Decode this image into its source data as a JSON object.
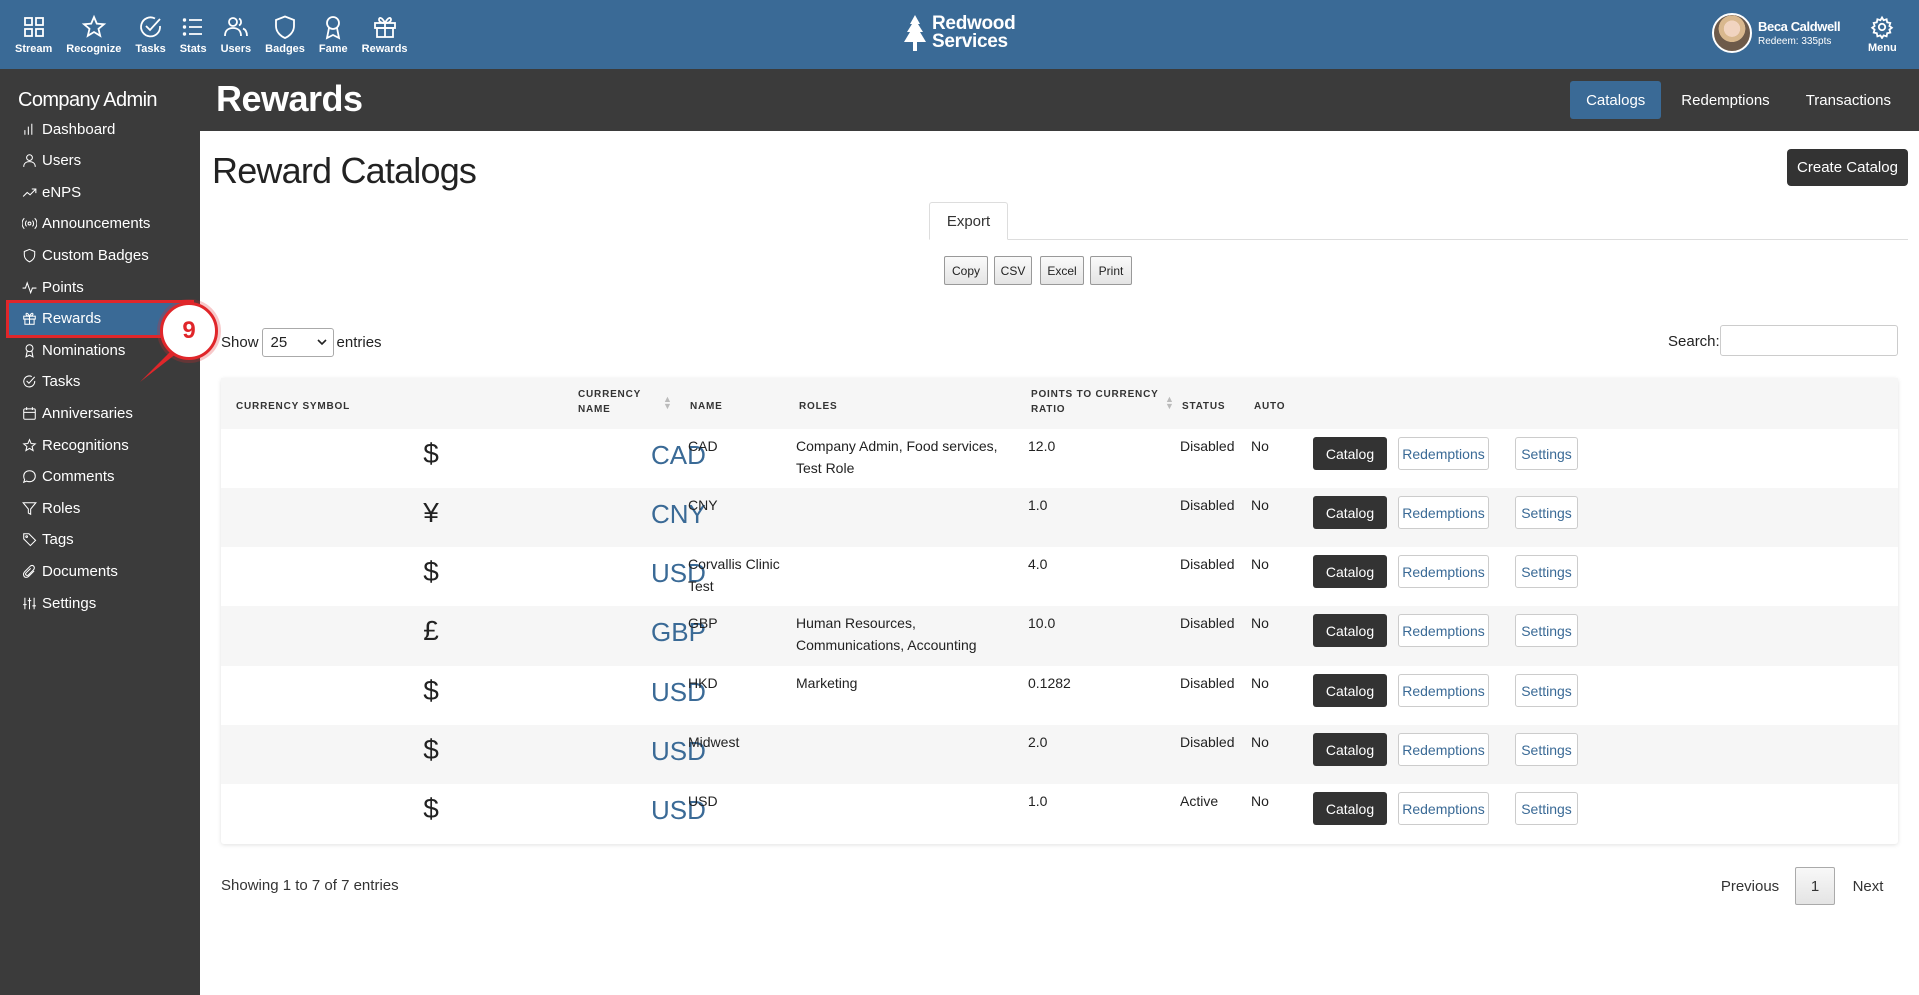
{
  "topnav": {
    "items": [
      {
        "label": "Stream",
        "icon": "grid-icon"
      },
      {
        "label": "Recognize",
        "icon": "star-icon"
      },
      {
        "label": "Tasks",
        "icon": "check-circle-icon"
      },
      {
        "label": "Stats",
        "icon": "list-icon"
      },
      {
        "label": "Users",
        "icon": "users-icon"
      },
      {
        "label": "Badges",
        "icon": "shield-icon"
      },
      {
        "label": "Fame",
        "icon": "award-icon"
      },
      {
        "label": "Rewards",
        "icon": "gift-icon"
      }
    ],
    "brand_line1": "Redwood",
    "brand_line2": "Services",
    "user_name": "Beca Caldwell",
    "user_points": "Redeem: 335pts",
    "menu_label": "Menu"
  },
  "sidebar": {
    "title": "Company Admin",
    "items": [
      {
        "label": "Dashboard",
        "icon": "bar-chart-icon"
      },
      {
        "label": "Users",
        "icon": "user-icon"
      },
      {
        "label": "eNPS",
        "icon": "trending-up-icon"
      },
      {
        "label": "Announcements",
        "icon": "broadcast-icon"
      },
      {
        "label": "Custom Badges",
        "icon": "shield-icon"
      },
      {
        "label": "Points",
        "icon": "activity-icon"
      },
      {
        "label": "Rewards",
        "icon": "gift-icon"
      },
      {
        "label": "Nominations",
        "icon": "award-icon"
      },
      {
        "label": "Tasks",
        "icon": "check-circle-icon"
      },
      {
        "label": "Anniversaries",
        "icon": "calendar-icon"
      },
      {
        "label": "Recognitions",
        "icon": "star-icon"
      },
      {
        "label": "Comments",
        "icon": "message-circle-icon"
      },
      {
        "label": "Roles",
        "icon": "filter-icon"
      },
      {
        "label": "Tags",
        "icon": "tag-icon"
      },
      {
        "label": "Documents",
        "icon": "paperclip-icon"
      },
      {
        "label": "Settings",
        "icon": "sliders-icon"
      }
    ],
    "active": "Rewards"
  },
  "header": {
    "title": "Rewards",
    "tabs": [
      "Catalogs",
      "Redemptions",
      "Transactions"
    ],
    "active_tab": "Catalogs"
  },
  "main": {
    "title": "Reward Catalogs",
    "create_button": "Create Catalog",
    "export_tab": "Export",
    "export_buttons": [
      "Copy",
      "CSV",
      "Excel",
      "Print"
    ],
    "show_label": "Show",
    "entries_value": "25",
    "entries_label": "entries",
    "search_label": "Search:",
    "search_value": ""
  },
  "table": {
    "headers": {
      "currency_symbol": "CURRENCY SYMBOL",
      "currency_name_1": "CURRENCY",
      "currency_name_2": "NAME",
      "name": "NAME",
      "roles": "ROLES",
      "ratio_1": "POINTS TO CURRENCY",
      "ratio_2": "RATIO",
      "status": "STATUS",
      "auto": "AUTO"
    },
    "rows": [
      {
        "symbol": "$",
        "currency": "CAD",
        "name": "CAD",
        "roles": "Company Admin, Food services, Test Role",
        "ratio": "12.0",
        "status": "Disabled",
        "auto": "No"
      },
      {
        "symbol": "¥",
        "currency": "CNY",
        "name": "CNY",
        "roles": "",
        "ratio": "1.0",
        "status": "Disabled",
        "auto": "No"
      },
      {
        "symbol": "$",
        "currency": "USD",
        "name": "Corvallis Clinic Test",
        "roles": "",
        "ratio": "4.0",
        "status": "Disabled",
        "auto": "No"
      },
      {
        "symbol": "£",
        "currency": "GBP",
        "name": "GBP",
        "roles": "Human Resources, Communications, Accounting",
        "ratio": "10.0",
        "status": "Disabled",
        "auto": "No"
      },
      {
        "symbol": "$",
        "currency": "USD",
        "name": "HKD",
        "roles": "Marketing",
        "ratio": "0.1282",
        "status": "Disabled",
        "auto": "No"
      },
      {
        "symbol": "$",
        "currency": "USD",
        "name": "Midwest",
        "roles": "",
        "ratio": "2.0",
        "status": "Disabled",
        "auto": "No"
      },
      {
        "symbol": "$",
        "currency": "USD",
        "name": "USD",
        "roles": "",
        "ratio": "1.0",
        "status": "Active",
        "auto": "No"
      }
    ],
    "row_buttons": {
      "catalog": "Catalog",
      "redemptions": "Redemptions",
      "settings": "Settings"
    }
  },
  "footer": {
    "showing": "Showing 1 to 7 of 7 entries",
    "previous": "Previous",
    "page": "1",
    "next": "Next"
  },
  "annotation": {
    "marker": "9"
  },
  "colors": {
    "primary": "#3a6a96",
    "dark": "#3b3b3b",
    "annotation": "#e0262a"
  }
}
